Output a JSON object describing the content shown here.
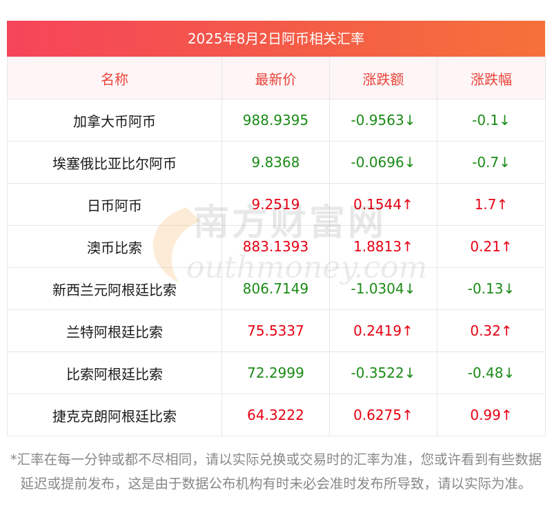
{
  "title": "2025年8月2日阿币相关汇率",
  "headers": [
    "名称",
    "最新价",
    "涨跌额",
    "涨跌幅"
  ],
  "rows": [
    {
      "name": "加拿大币阿币",
      "price": "988.9395",
      "change": "-0.9563↓",
      "pct": "-0.1↓",
      "dir": "down"
    },
    {
      "name": "埃塞俄比亚比尔阿币",
      "price": "9.8368",
      "change": "-0.0696↓",
      "pct": "-0.7↓",
      "dir": "down"
    },
    {
      "name": "日币阿币",
      "price": "9.2519",
      "change": "0.1544↑",
      "pct": "1.7↑",
      "dir": "up"
    },
    {
      "name": "澳币比索",
      "price": "883.1393",
      "change": "1.8813↑",
      "pct": "0.21↑",
      "dir": "up"
    },
    {
      "name": "新西兰元阿根廷比索",
      "price": "806.7149",
      "change": "-1.0304↓",
      "pct": "-0.13↓",
      "dir": "down"
    },
    {
      "name": "兰特阿根廷比索",
      "price": "75.5337",
      "change": "0.2419↑",
      "pct": "0.32↑",
      "dir": "up"
    },
    {
      "name": "比索阿根廷比索",
      "price": "72.2999",
      "change": "-0.3522↓",
      "pct": "-0.48↓",
      "dir": "down"
    },
    {
      "name": "捷克克朗阿根廷比索",
      "price": "64.3222",
      "change": "0.6275↑",
      "pct": "0.99↑",
      "dir": "up"
    }
  ],
  "watermark": {
    "cn": "南方财富网",
    "en": "outhmoney.com"
  },
  "footnote": "*汇率在每一分钟或都不尽相同，请以实际兑换或交易时的汇率为准，您或许看到有些数据延迟或提前发布，这是由于数据公布机构有时未必会准时发布所导致，请以实际为准。"
}
